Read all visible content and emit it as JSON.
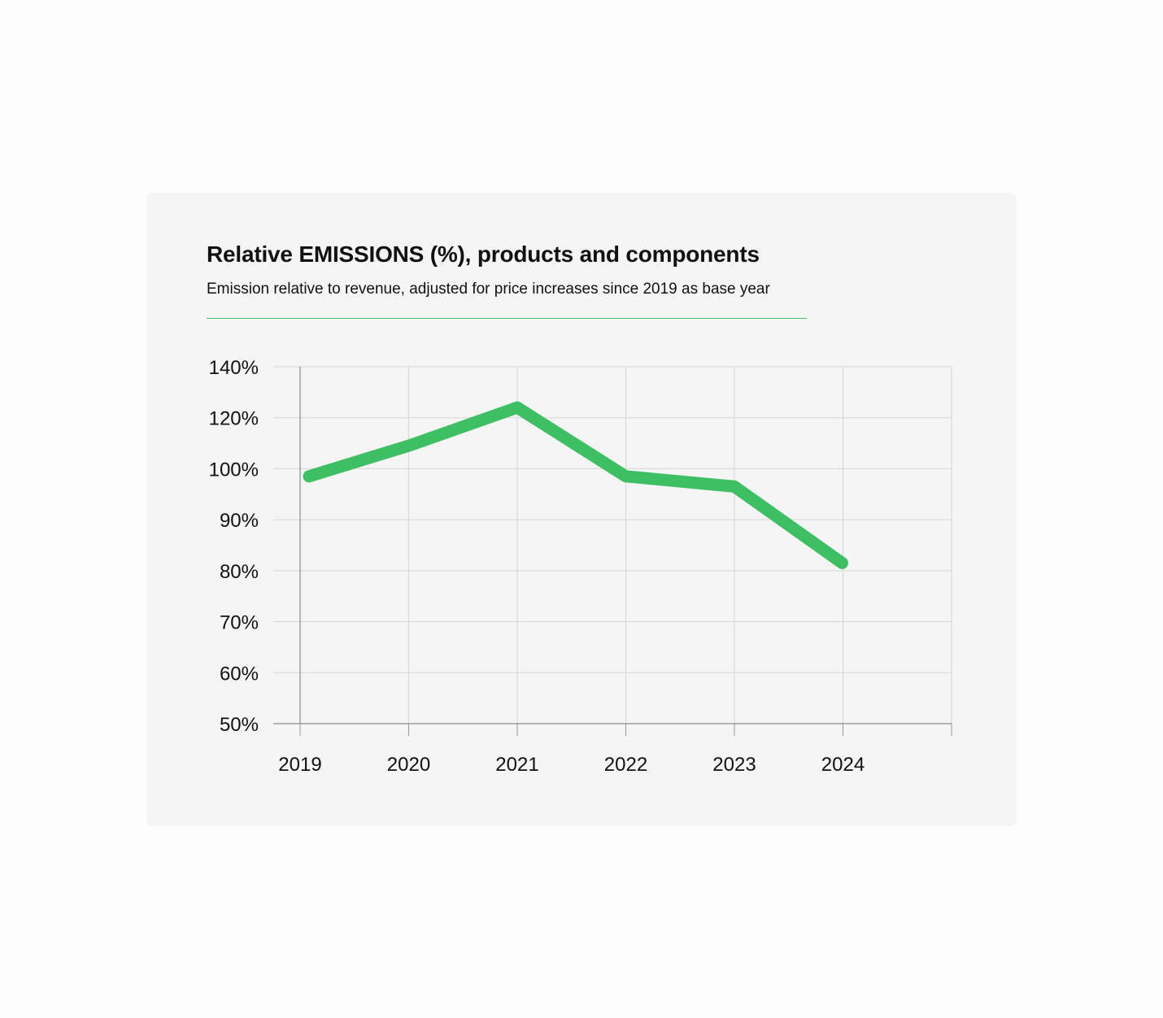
{
  "chart_data": {
    "type": "line",
    "title": "Relative EMISSIONS (%), products and components",
    "subtitle": "Emission relative to revenue, adjusted for price increases since 2019 as base year",
    "xlabel": "",
    "ylabel": "",
    "categories": [
      "2019",
      "2020",
      "2021",
      "2022",
      "2023",
      "2024"
    ],
    "y_ticks": [
      50,
      60,
      70,
      80,
      90,
      100,
      120,
      140
    ],
    "y_tick_labels": [
      "50%",
      "60%",
      "70%",
      "80%",
      "90%",
      "100%",
      "120%",
      "140%"
    ],
    "series": [
      {
        "name": "Relative emissions",
        "values": [
          98.5,
          109,
          124,
          98.5,
          96.5,
          81.5
        ],
        "color": "#3fbf63"
      }
    ],
    "grid": true,
    "legend": "none"
  },
  "colors": {
    "accent": "#3fbf63",
    "card_background": "#f5f5f5",
    "gridline": "#d6d6d6"
  }
}
